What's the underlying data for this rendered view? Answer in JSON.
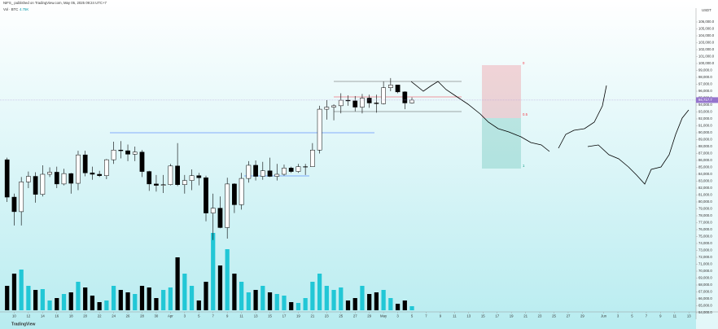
{
  "header": {
    "published": "NIFS_ published on TradingView.com, May 05, 2025 09:24 UTC+7",
    "indicator": "Vol · BTC",
    "indicator_value": "4.75K"
  },
  "footer": {
    "logo": "TradingView"
  },
  "chart_data": {
    "type": "candlestick",
    "currency": "USDT",
    "last_price_label": "94,717.7",
    "annotations": [
      "0",
      "0.5",
      "1"
    ],
    "up_color": "#ffffff",
    "down_color": "#000000",
    "volume_up_color": "#22c7d6",
    "volume_down_color": "#000000",
    "price_line_color": "#b39ddb",
    "x": [
      "2025-03-09",
      "2025-03-10",
      "2025-03-11",
      "2025-03-12",
      "2025-03-13",
      "2025-03-14",
      "2025-03-15",
      "2025-03-16",
      "2025-03-17",
      "2025-03-18",
      "2025-03-19",
      "2025-03-20",
      "2025-03-21",
      "2025-03-22",
      "2025-03-23",
      "2025-03-24",
      "2025-03-25",
      "2025-03-26",
      "2025-03-27",
      "2025-03-28",
      "2025-03-29",
      "2025-03-30",
      "2025-03-31",
      "2025-04-01",
      "2025-04-02",
      "2025-04-03",
      "2025-04-04",
      "2025-04-05",
      "2025-04-06",
      "2025-04-07",
      "2025-04-08",
      "2025-04-09",
      "2025-04-10",
      "2025-04-11",
      "2025-04-12",
      "2025-04-13",
      "2025-04-14",
      "2025-04-15",
      "2025-04-16",
      "2025-04-17",
      "2025-04-18",
      "2025-04-19",
      "2025-04-20",
      "2025-04-21",
      "2025-04-22",
      "2025-04-23",
      "2025-04-24",
      "2025-04-25",
      "2025-04-26",
      "2025-04-27",
      "2025-04-28",
      "2025-04-29",
      "2025-04-30",
      "2025-05-01",
      "2025-05-02",
      "2025-05-03",
      "2025-05-04",
      "2025-05-05"
    ],
    "open": [
      86100,
      80700,
      78600,
      82900,
      83700,
      81100,
      84000,
      84300,
      82600,
      84100,
      82700,
      86800,
      84200,
      84000,
      83800,
      86100,
      87500,
      87400,
      86900,
      87200,
      84400,
      82600,
      82400,
      82500,
      85200,
      82500,
      83100,
      83800,
      83500,
      78400,
      79100,
      76300,
      82600,
      79600,
      83400,
      85300,
      83700,
      84500,
      83700,
      84000,
      84900,
      84400,
      85100,
      85100,
      87500,
      93400,
      93700,
      93900,
      94700,
      94600,
      93700,
      95000,
      94300,
      94200,
      96500,
      96900,
      95900,
      94300
    ],
    "high": [
      86400,
      81200,
      83600,
      84400,
      84300,
      85300,
      85000,
      85100,
      84800,
      84200,
      87400,
      87400,
      85100,
      84500,
      86200,
      88700,
      88800,
      88300,
      88000,
      87500,
      84500,
      83900,
      83900,
      85500,
      88500,
      83900,
      84700,
      84200,
      83800,
      81200,
      80800,
      83500,
      82700,
      84200,
      85900,
      86000,
      85800,
      86400,
      85500,
      85400,
      85100,
      85500,
      85500,
      88500,
      93900,
      94700,
      94100,
      95700,
      95400,
      95300,
      95600,
      95500,
      95500,
      97400,
      97900,
      96900,
      96000,
      95100
    ],
    "low": [
      80000,
      76600,
      76600,
      82000,
      79900,
      80800,
      83600,
      82000,
      82400,
      81200,
      81700,
      83700,
      83200,
      83600,
      83300,
      85500,
      86300,
      85900,
      85900,
      83600,
      81600,
      81500,
      81300,
      82400,
      82300,
      81200,
      81700,
      82400,
      77200,
      74500,
      76200,
      74700,
      78400,
      78900,
      82800,
      83100,
      83200,
      83600,
      83100,
      83800,
      84200,
      84200,
      83900,
      85100,
      87000,
      91900,
      91800,
      92800,
      93900,
      93100,
      92800,
      93600,
      92900,
      94100,
      96000,
      95700,
      93400,
      94200
    ],
    "close": [
      80700,
      78600,
      82900,
      83700,
      81100,
      84000,
      84300,
      82600,
      84100,
      82700,
      86800,
      84200,
      84000,
      83800,
      86100,
      87500,
      87400,
      86900,
      87200,
      84400,
      82600,
      82400,
      82500,
      85200,
      82500,
      83100,
      83800,
      83500,
      78400,
      79100,
      76300,
      82600,
      79600,
      83400,
      85300,
      83700,
      84500,
      83700,
      84000,
      84900,
      84400,
      85100,
      85100,
      87500,
      93400,
      93700,
      93900,
      94700,
      94600,
      93700,
      95000,
      94300,
      94200,
      96500,
      96900,
      95900,
      94300,
      94717.7
    ],
    "volume": [
      30000,
      45000,
      50000,
      30000,
      25000,
      26000,
      12000,
      15000,
      20000,
      22000,
      35000,
      28000,
      18000,
      10000,
      12000,
      30000,
      25000,
      22000,
      20000,
      30000,
      28000,
      15000,
      25000,
      28000,
      65000,
      45000,
      30000,
      12000,
      35000,
      95000,
      55000,
      75000,
      45000,
      35000,
      22000,
      25000,
      30000,
      22000,
      20000,
      18000,
      10000,
      9000,
      15000,
      35000,
      45000,
      30000,
      25000,
      28000,
      12000,
      15000,
      30000,
      20000,
      22000,
      25000,
      15000,
      8000,
      12000,
      5000
    ],
    "xlim": [
      "2025-03-08",
      "2025-06-14"
    ],
    "xticks": [
      {
        "value": "2025-03-10",
        "label": "10"
      },
      {
        "value": "2025-03-12",
        "label": "12"
      },
      {
        "value": "2025-03-14",
        "label": "14"
      },
      {
        "value": "2025-03-16",
        "label": "16"
      },
      {
        "value": "2025-03-18",
        "label": "18"
      },
      {
        "value": "2025-03-20",
        "label": "20"
      },
      {
        "value": "2025-03-22",
        "label": "22"
      },
      {
        "value": "2025-03-24",
        "label": "24"
      },
      {
        "value": "2025-03-26",
        "label": "26"
      },
      {
        "value": "2025-03-28",
        "label": "28"
      },
      {
        "value": "2025-03-30",
        "label": "30"
      },
      {
        "value": "2025-04-01",
        "label": "Apr"
      },
      {
        "value": "2025-04-03",
        "label": "3"
      },
      {
        "value": "2025-04-05",
        "label": "5"
      },
      {
        "value": "2025-04-07",
        "label": "7"
      },
      {
        "value": "2025-04-09",
        "label": "9"
      },
      {
        "value": "2025-04-11",
        "label": "11"
      },
      {
        "value": "2025-04-13",
        "label": "13"
      },
      {
        "value": "2025-04-15",
        "label": "15"
      },
      {
        "value": "2025-04-17",
        "label": "17"
      },
      {
        "value": "2025-04-19",
        "label": "19"
      },
      {
        "value": "2025-04-21",
        "label": "21"
      },
      {
        "value": "2025-04-23",
        "label": "23"
      },
      {
        "value": "2025-04-25",
        "label": "25"
      },
      {
        "value": "2025-04-27",
        "label": "27"
      },
      {
        "value": "2025-04-29",
        "label": "29"
      },
      {
        "value": "2025-05-01",
        "label": "May"
      },
      {
        "value": "2025-05-03",
        "label": "3"
      },
      {
        "value": "2025-05-05",
        "label": "5"
      },
      {
        "value": "2025-05-07",
        "label": "7"
      },
      {
        "value": "2025-05-09",
        "label": "9"
      },
      {
        "value": "2025-05-11",
        "label": "11"
      },
      {
        "value": "2025-05-13",
        "label": "13"
      },
      {
        "value": "2025-05-15",
        "label": "15"
      },
      {
        "value": "2025-05-17",
        "label": "17"
      },
      {
        "value": "2025-05-19",
        "label": "19"
      },
      {
        "value": "2025-05-21",
        "label": "21"
      },
      {
        "value": "2025-05-23",
        "label": "23"
      },
      {
        "value": "2025-05-25",
        "label": "25"
      },
      {
        "value": "2025-05-27",
        "label": "27"
      },
      {
        "value": "2025-05-29",
        "label": "29"
      },
      {
        "value": "2025-06-01",
        "label": "Jun"
      },
      {
        "value": "2025-06-03",
        "label": "3"
      },
      {
        "value": "2025-06-05",
        "label": "5"
      },
      {
        "value": "2025-06-07",
        "label": "7"
      },
      {
        "value": "2025-06-09",
        "label": "9"
      },
      {
        "value": "2025-06-11",
        "label": "11"
      },
      {
        "value": "2025-06-13",
        "label": "13"
      }
    ],
    "ylim": [
      63000,
      108000
    ],
    "yticks": [
      {
        "value": 106000,
        "label": "106,000.0"
      },
      {
        "value": 105000,
        "label": "105,000.0"
      },
      {
        "value": 104000,
        "label": "104,000.0"
      },
      {
        "value": 103000,
        "label": "103,000.0"
      },
      {
        "value": 102000,
        "label": "102,000.0"
      },
      {
        "value": 101000,
        "label": "101,000.0"
      },
      {
        "value": 100000,
        "label": "100,000.0"
      },
      {
        "value": 99000,
        "label": "99,000.0"
      },
      {
        "value": 98000,
        "label": "98,000.0"
      },
      {
        "value": 97000,
        "label": "97,000.0"
      },
      {
        "value": 96000,
        "label": "96,000.0"
      },
      {
        "value": 95000,
        "label": "95,000.0"
      },
      {
        "value": 94000,
        "label": "94,000.0"
      },
      {
        "value": 93000,
        "label": "93,000.0"
      },
      {
        "value": 92000,
        "label": "92,000.0"
      },
      {
        "value": 91000,
        "label": "91,000.0"
      },
      {
        "value": 90000,
        "label": "90,000.0"
      },
      {
        "value": 89000,
        "label": "89,000.0"
      },
      {
        "value": 88000,
        "label": "88,000.0"
      },
      {
        "value": 87000,
        "label": "87,000.0"
      },
      {
        "value": 86000,
        "label": "86,000.0"
      },
      {
        "value": 85000,
        "label": "85,000.0"
      },
      {
        "value": 84000,
        "label": "84,000.0"
      },
      {
        "value": 83000,
        "label": "83,000.0"
      },
      {
        "value": 82000,
        "label": "82,000.0"
      },
      {
        "value": 81000,
        "label": "81,000.0"
      },
      {
        "value": 80000,
        "label": "80,000.0"
      },
      {
        "value": 79000,
        "label": "79,000.0"
      },
      {
        "value": 78000,
        "label": "78,000.0"
      },
      {
        "value": 77000,
        "label": "77,000.0"
      },
      {
        "value": 76000,
        "label": "76,000.0"
      },
      {
        "value": 75000,
        "label": "75,000.0"
      },
      {
        "value": 74000,
        "label": "74,000.0"
      },
      {
        "value": 73000,
        "label": "73,000.0"
      },
      {
        "value": 72000,
        "label": "72,000.0"
      },
      {
        "value": 71000,
        "label": "71,000.0"
      },
      {
        "value": 70000,
        "label": "70,000.0"
      },
      {
        "value": 69000,
        "label": "69,000.0"
      },
      {
        "value": 68000,
        "label": "68,000.0"
      },
      {
        "value": 67000,
        "label": "67,000.0"
      },
      {
        "value": 66000,
        "label": "66,000.0"
      },
      {
        "value": 65000,
        "label": "65,000.0"
      },
      {
        "value": 64000,
        "label": "64,000.0"
      }
    ]
  }
}
